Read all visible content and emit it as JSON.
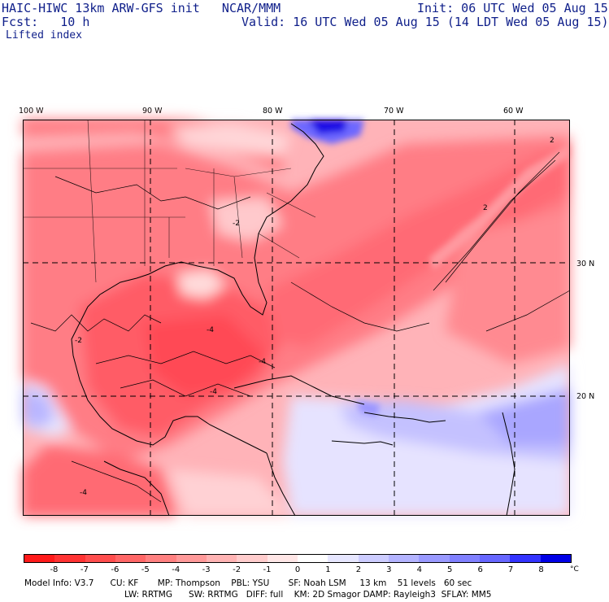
{
  "header": {
    "title": "HAIC-HIWC 13km ARW-GFS init   NCAR/MMM",
    "init": "Init: 06 UTC Wed 05 Aug 15",
    "fcst": "Fcst:   10 h",
    "valid": "Valid: 16 UTC Wed 05 Aug 15 (14 LDT Wed 05 Aug 15)",
    "field": "Lifted index"
  },
  "map": {
    "lon_labels": [
      "100 W",
      "90 W",
      "80 W",
      "70 W",
      "60 W"
    ],
    "lat_labels": [
      "30 N",
      "20 N"
    ],
    "contour_labels": [
      "2",
      "2",
      "-2",
      "-4",
      "-2",
      "-4",
      "-4",
      "-4"
    ]
  },
  "legend": {
    "ticks": [
      "-8",
      "-7",
      "-6",
      "-5",
      "-4",
      "-3",
      "-2",
      "-1",
      "0",
      "1",
      "2",
      "3",
      "4",
      "5",
      "6",
      "7",
      "8"
    ],
    "unit": "°C",
    "colors": [
      "#ff1a1a",
      "#ff3333",
      "#ff4d4d",
      "#ff6666",
      "#ff8080",
      "#ff9999",
      "#ffb3b3",
      "#ffcccc",
      "#ffe6e6",
      "#ffffff",
      "#e6e6ff",
      "#ccccff",
      "#b3b3ff",
      "#9999ff",
      "#8080ff",
      "#6666ff",
      "#3333ff",
      "#0000e6"
    ]
  },
  "model_info": {
    "line1": "Model Info: V3.7      CU: KF       MP: Thompson    PBL: YSU       SF: Noah LSM     13 km    51 levels   60 sec",
    "line2": "LW: RRTMG      SW: RRTMG   DIFF: full    KM: 2D Smagor DAMP: Rayleigh3  SFLAY: MM5"
  }
}
